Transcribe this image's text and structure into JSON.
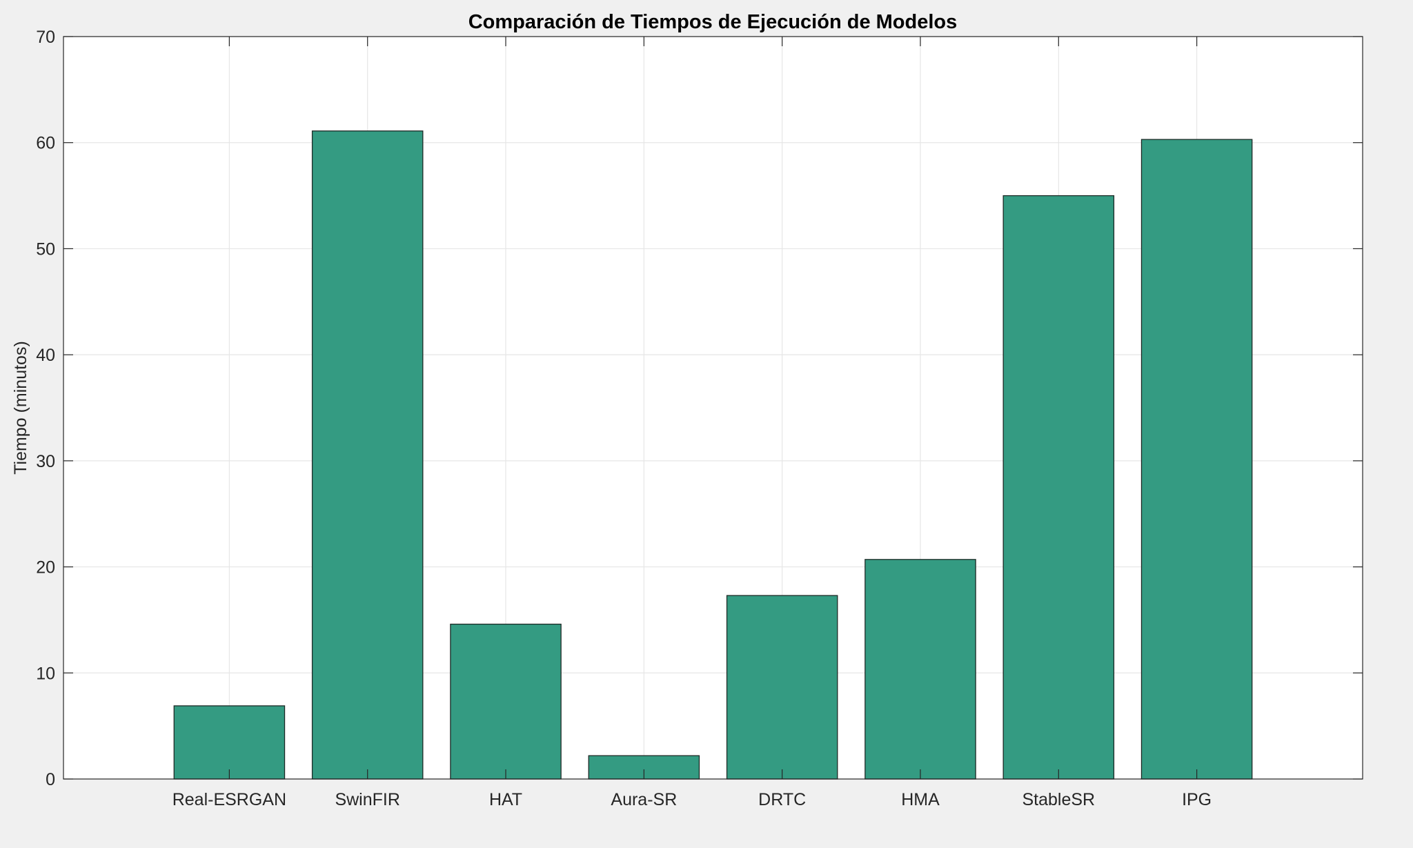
{
  "chart_data": {
    "type": "bar",
    "title": "Comparación de Tiempos de Ejecución de Modelos",
    "xlabel": "",
    "ylabel": "Tiempo (minutos)",
    "categories": [
      "Real-ESRGAN",
      "SwinFIR",
      "HAT",
      "Aura-SR",
      "DRTC",
      "HMA",
      "StableSR",
      "IPG"
    ],
    "values": [
      6.9,
      61.1,
      14.6,
      2.2,
      17.3,
      20.7,
      55.0,
      60.3
    ],
    "ylim": [
      0,
      70
    ],
    "yticks": [
      0,
      10,
      20,
      30,
      40,
      50,
      60,
      70
    ],
    "xlim": [
      -0.2,
      9.2
    ],
    "grid": true,
    "bar_color": "#349b82",
    "edge_color": "#1e2a26",
    "grid_color": "#e6e6e6",
    "axes_background": "#ffffff",
    "figure_background": "#f0f0f0"
  }
}
